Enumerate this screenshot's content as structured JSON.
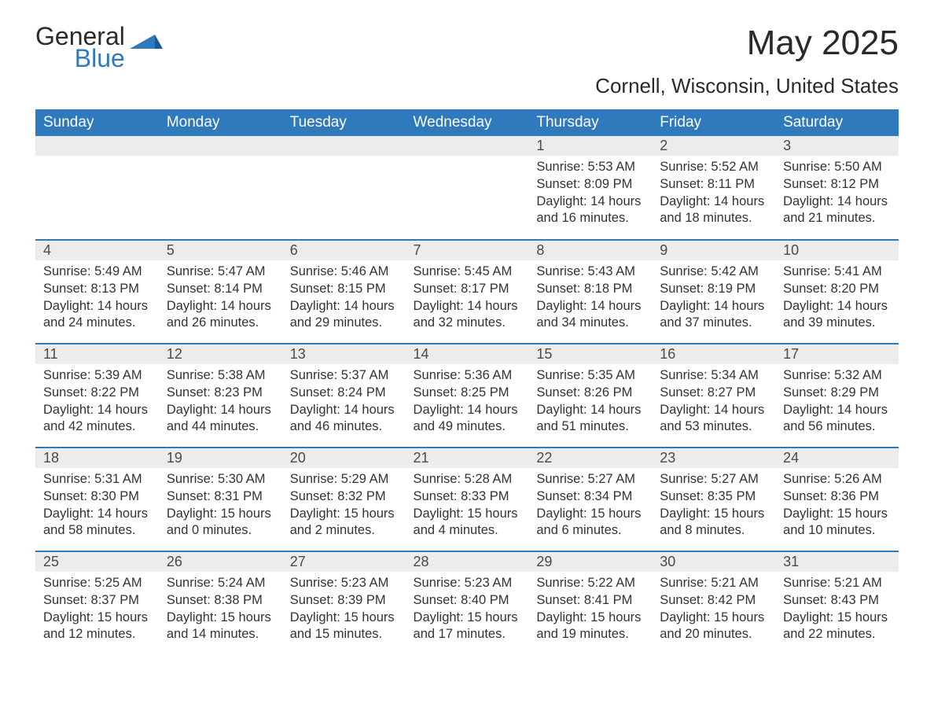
{
  "brand": {
    "general": "General",
    "blue": "Blue"
  },
  "title": "May 2025",
  "location": "Cornell, Wisconsin, United States",
  "colors": {
    "header_bg": "#2f79bd",
    "header_text": "#ffffff",
    "daynum_bg": "#ececec",
    "body_text": "#333333",
    "page_bg": "#ffffff",
    "rule": "#2f79bd"
  },
  "fonts": {
    "title_pt": 44,
    "location_pt": 26,
    "header_pt": 19,
    "body_pt": 16
  },
  "weekdays": [
    "Sunday",
    "Monday",
    "Tuesday",
    "Wednesday",
    "Thursday",
    "Friday",
    "Saturday"
  ],
  "weeks": [
    [
      null,
      null,
      null,
      null,
      {
        "n": "1",
        "sunrise": "Sunrise: 5:53 AM",
        "sunset": "Sunset: 8:09 PM",
        "daylight": "Daylight: 14 hours and 16 minutes."
      },
      {
        "n": "2",
        "sunrise": "Sunrise: 5:52 AM",
        "sunset": "Sunset: 8:11 PM",
        "daylight": "Daylight: 14 hours and 18 minutes."
      },
      {
        "n": "3",
        "sunrise": "Sunrise: 5:50 AM",
        "sunset": "Sunset: 8:12 PM",
        "daylight": "Daylight: 14 hours and 21 minutes."
      }
    ],
    [
      {
        "n": "4",
        "sunrise": "Sunrise: 5:49 AM",
        "sunset": "Sunset: 8:13 PM",
        "daylight": "Daylight: 14 hours and 24 minutes."
      },
      {
        "n": "5",
        "sunrise": "Sunrise: 5:47 AM",
        "sunset": "Sunset: 8:14 PM",
        "daylight": "Daylight: 14 hours and 26 minutes."
      },
      {
        "n": "6",
        "sunrise": "Sunrise: 5:46 AM",
        "sunset": "Sunset: 8:15 PM",
        "daylight": "Daylight: 14 hours and 29 minutes."
      },
      {
        "n": "7",
        "sunrise": "Sunrise: 5:45 AM",
        "sunset": "Sunset: 8:17 PM",
        "daylight": "Daylight: 14 hours and 32 minutes."
      },
      {
        "n": "8",
        "sunrise": "Sunrise: 5:43 AM",
        "sunset": "Sunset: 8:18 PM",
        "daylight": "Daylight: 14 hours and 34 minutes."
      },
      {
        "n": "9",
        "sunrise": "Sunrise: 5:42 AM",
        "sunset": "Sunset: 8:19 PM",
        "daylight": "Daylight: 14 hours and 37 minutes."
      },
      {
        "n": "10",
        "sunrise": "Sunrise: 5:41 AM",
        "sunset": "Sunset: 8:20 PM",
        "daylight": "Daylight: 14 hours and 39 minutes."
      }
    ],
    [
      {
        "n": "11",
        "sunrise": "Sunrise: 5:39 AM",
        "sunset": "Sunset: 8:22 PM",
        "daylight": "Daylight: 14 hours and 42 minutes."
      },
      {
        "n": "12",
        "sunrise": "Sunrise: 5:38 AM",
        "sunset": "Sunset: 8:23 PM",
        "daylight": "Daylight: 14 hours and 44 minutes."
      },
      {
        "n": "13",
        "sunrise": "Sunrise: 5:37 AM",
        "sunset": "Sunset: 8:24 PM",
        "daylight": "Daylight: 14 hours and 46 minutes."
      },
      {
        "n": "14",
        "sunrise": "Sunrise: 5:36 AM",
        "sunset": "Sunset: 8:25 PM",
        "daylight": "Daylight: 14 hours and 49 minutes."
      },
      {
        "n": "15",
        "sunrise": "Sunrise: 5:35 AM",
        "sunset": "Sunset: 8:26 PM",
        "daylight": "Daylight: 14 hours and 51 minutes."
      },
      {
        "n": "16",
        "sunrise": "Sunrise: 5:34 AM",
        "sunset": "Sunset: 8:27 PM",
        "daylight": "Daylight: 14 hours and 53 minutes."
      },
      {
        "n": "17",
        "sunrise": "Sunrise: 5:32 AM",
        "sunset": "Sunset: 8:29 PM",
        "daylight": "Daylight: 14 hours and 56 minutes."
      }
    ],
    [
      {
        "n": "18",
        "sunrise": "Sunrise: 5:31 AM",
        "sunset": "Sunset: 8:30 PM",
        "daylight": "Daylight: 14 hours and 58 minutes."
      },
      {
        "n": "19",
        "sunrise": "Sunrise: 5:30 AM",
        "sunset": "Sunset: 8:31 PM",
        "daylight": "Daylight: 15 hours and 0 minutes."
      },
      {
        "n": "20",
        "sunrise": "Sunrise: 5:29 AM",
        "sunset": "Sunset: 8:32 PM",
        "daylight": "Daylight: 15 hours and 2 minutes."
      },
      {
        "n": "21",
        "sunrise": "Sunrise: 5:28 AM",
        "sunset": "Sunset: 8:33 PM",
        "daylight": "Daylight: 15 hours and 4 minutes."
      },
      {
        "n": "22",
        "sunrise": "Sunrise: 5:27 AM",
        "sunset": "Sunset: 8:34 PM",
        "daylight": "Daylight: 15 hours and 6 minutes."
      },
      {
        "n": "23",
        "sunrise": "Sunrise: 5:27 AM",
        "sunset": "Sunset: 8:35 PM",
        "daylight": "Daylight: 15 hours and 8 minutes."
      },
      {
        "n": "24",
        "sunrise": "Sunrise: 5:26 AM",
        "sunset": "Sunset: 8:36 PM",
        "daylight": "Daylight: 15 hours and 10 minutes."
      }
    ],
    [
      {
        "n": "25",
        "sunrise": "Sunrise: 5:25 AM",
        "sunset": "Sunset: 8:37 PM",
        "daylight": "Daylight: 15 hours and 12 minutes."
      },
      {
        "n": "26",
        "sunrise": "Sunrise: 5:24 AM",
        "sunset": "Sunset: 8:38 PM",
        "daylight": "Daylight: 15 hours and 14 minutes."
      },
      {
        "n": "27",
        "sunrise": "Sunrise: 5:23 AM",
        "sunset": "Sunset: 8:39 PM",
        "daylight": "Daylight: 15 hours and 15 minutes."
      },
      {
        "n": "28",
        "sunrise": "Sunrise: 5:23 AM",
        "sunset": "Sunset: 8:40 PM",
        "daylight": "Daylight: 15 hours and 17 minutes."
      },
      {
        "n": "29",
        "sunrise": "Sunrise: 5:22 AM",
        "sunset": "Sunset: 8:41 PM",
        "daylight": "Daylight: 15 hours and 19 minutes."
      },
      {
        "n": "30",
        "sunrise": "Sunrise: 5:21 AM",
        "sunset": "Sunset: 8:42 PM",
        "daylight": "Daylight: 15 hours and 20 minutes."
      },
      {
        "n": "31",
        "sunrise": "Sunrise: 5:21 AM",
        "sunset": "Sunset: 8:43 PM",
        "daylight": "Daylight: 15 hours and 22 minutes."
      }
    ]
  ]
}
